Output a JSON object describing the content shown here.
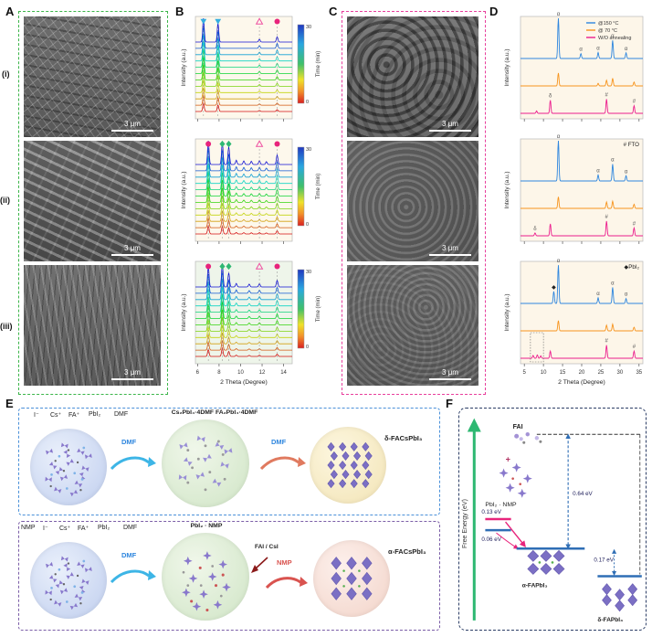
{
  "figure": {
    "panel_a": {
      "label": "A",
      "row_labels": [
        "(i)",
        "(ii)",
        "(iii)"
      ],
      "scalebar": "3 μm"
    },
    "panel_b": {
      "label": "B"
    },
    "panel_c": {
      "label": "C",
      "scalebar": "3 μm"
    },
    "panel_d": {
      "label": "D"
    },
    "panel_e": {
      "label": "E",
      "top": {
        "ions": [
          "I⁻",
          "Cs⁺",
          "FA⁺",
          "PbI₂",
          "DMF"
        ],
        "arrow1": "DMF",
        "intermediate": "Cs₂PbI₄·4DMF   FA₂PbI₄·4DMF",
        "arrow2": "DMF",
        "product": "δ-FACsPbI₃"
      },
      "bottom": {
        "ions": [
          "NMP",
          "I⁻",
          "Cs⁺",
          "FA⁺",
          "PbI₂",
          "DMF"
        ],
        "arrow1": "DMF",
        "intermediate": "PbI₂ · NMP",
        "side": "FAI / CsI",
        "arrow2": "NMP",
        "product": "α-FACsPbI₃"
      }
    },
    "panel_f": {
      "label": "F",
      "ylabel": "Free Energy (eV)",
      "fai": "FAI",
      "plus": "+",
      "pbi2nmp": "PbI₂ · NMP",
      "e013": "0.13 eV",
      "e006": "0.06 eV",
      "e064": "0.64 eV",
      "e017": "0.17 eV",
      "alpha": "α-FAPbI₃",
      "delta": "δ-FAPbI₃"
    }
  },
  "chart_data": [
    {
      "id": "B-i",
      "type": "line",
      "subtype": "waterfall",
      "ylabel": "Intensity (a.u.)",
      "xlabel": "2 Theta (Degree)",
      "xlim": [
        5.8,
        14.8
      ],
      "xticks": [
        6,
        8,
        10,
        12,
        14
      ],
      "colorbar": {
        "label": "Time (min)",
        "range": [
          0,
          30
        ]
      },
      "n_traces": 12,
      "bg": "#fdf8ec",
      "peaks": [
        {
          "x": 6.55,
          "h": 1.0,
          "marker": "triangle-down",
          "color": "#35aee0"
        },
        {
          "x": 7.9,
          "h": 0.8,
          "marker": "triangle-down",
          "color": "#35aee0"
        },
        {
          "x": 11.75,
          "h": 0.12,
          "marker": "triangle-open",
          "color": "#ee4fa0"
        },
        {
          "x": 13.4,
          "h": 0.22,
          "marker": "circle",
          "color": "#e8247c"
        }
      ]
    },
    {
      "id": "B-ii",
      "type": "line",
      "subtype": "waterfall",
      "ylabel": "Intensity (a.u.)",
      "xlabel": "2 Theta (Degree)",
      "xlim": [
        5.8,
        14.8
      ],
      "xticks": [
        6,
        8,
        10,
        12,
        14
      ],
      "colorbar": {
        "label": "Time (min)",
        "range": [
          0,
          30
        ]
      },
      "n_traces": 12,
      "bg": "#fdf8ec",
      "peaks": [
        {
          "x": 7.0,
          "h": 1.0,
          "marker": "circle",
          "color": "#e8247c"
        },
        {
          "x": 8.3,
          "h": 0.95,
          "marker": "diamond",
          "color": "#2eb872"
        },
        {
          "x": 8.9,
          "h": 0.75,
          "marker": "diamond",
          "color": "#2eb872"
        },
        {
          "x": 9.6,
          "h": 0.18
        },
        {
          "x": 10.3,
          "h": 0.15
        },
        {
          "x": 11.0,
          "h": 0.14
        },
        {
          "x": 11.75,
          "h": 0.16,
          "marker": "triangle-open",
          "color": "#ee4fa0"
        },
        {
          "x": 12.4,
          "h": 0.12
        },
        {
          "x": 13.4,
          "h": 0.4,
          "marker": "circle",
          "color": "#e8247c"
        }
      ]
    },
    {
      "id": "B-iii",
      "type": "line",
      "subtype": "waterfall",
      "ylabel": "Intensity (a.u.)",
      "xlabel": "2 Theta (Degree)",
      "xlim": [
        5.8,
        14.8
      ],
      "xticks": [
        6,
        8,
        10,
        12,
        14
      ],
      "colorbar": {
        "label": "Time (min)",
        "range": [
          0,
          30
        ]
      },
      "n_traces": 12,
      "bg": "#eef5ea",
      "peaks": [
        {
          "x": 7.0,
          "h": 0.85,
          "marker": "circle",
          "color": "#e8247c"
        },
        {
          "x": 8.3,
          "h": 1.0,
          "marker": "diamond",
          "color": "#2eb872"
        },
        {
          "x": 8.9,
          "h": 0.6,
          "marker": "diamond",
          "color": "#2eb872"
        },
        {
          "x": 9.6,
          "h": 0.15
        },
        {
          "x": 10.8,
          "h": 0.12
        },
        {
          "x": 11.75,
          "h": 0.14,
          "marker": "triangle-open",
          "color": "#ee4fa0"
        },
        {
          "x": 13.4,
          "h": 0.28,
          "marker": "circle",
          "color": "#e8247c"
        }
      ]
    },
    {
      "id": "D-top",
      "type": "line",
      "ylabel": "Intensity (a.u.)",
      "xlabel": "2 Theta (Degree)",
      "xlim": [
        4,
        36
      ],
      "xticks": [
        5,
        10,
        15,
        20,
        25,
        30,
        35
      ],
      "bg": "#fdf6e9",
      "legend": true,
      "series": [
        {
          "name": "@150 °C",
          "color": "#2e86de",
          "peaks": [
            {
              "x": 13.9,
              "h": 1.0,
              "label": "α"
            },
            {
              "x": 19.8,
              "h": 0.12,
              "label": "α"
            },
            {
              "x": 24.3,
              "h": 0.15,
              "label": "α"
            },
            {
              "x": 28.1,
              "h": 0.45,
              "label": "α"
            },
            {
              "x": 31.6,
              "h": 0.14,
              "label": "α"
            }
          ]
        },
        {
          "name": "@ 70 °C",
          "color": "#f7941d",
          "peaks": [
            {
              "x": 13.9,
              "h": 0.5
            },
            {
              "x": 24.3,
              "h": 0.1
            },
            {
              "x": 26.5,
              "h": 0.22
            },
            {
              "x": 28.1,
              "h": 0.3
            },
            {
              "x": 33.7,
              "h": 0.15
            }
          ]
        },
        {
          "name": "W/O annealing",
          "color": "#ec1d8d",
          "peaks": [
            {
              "x": 8.2,
              "h": 0.1
            },
            {
              "x": 11.8,
              "h": 0.55,
              "label": "δ"
            },
            {
              "x": 26.5,
              "h": 0.6,
              "label": "#"
            },
            {
              "x": 33.7,
              "h": 0.32,
              "label": "#"
            }
          ]
        }
      ]
    },
    {
      "id": "D-mid",
      "type": "line",
      "ylabel": "Intensity (a.u.)",
      "xlabel": "2 Theta (Degree)",
      "xlim": [
        4,
        36
      ],
      "xticks": [
        5,
        10,
        15,
        20,
        25,
        30,
        35
      ],
      "bg": "#fdf6e9",
      "annotation": "# FTO",
      "series": [
        {
          "name": "@150 °C",
          "color": "#2e86de",
          "peaks": [
            {
              "x": 13.9,
              "h": 1.0,
              "label": "α"
            },
            {
              "x": 24.3,
              "h": 0.15,
              "label": "α"
            },
            {
              "x": 28.1,
              "h": 0.42,
              "label": "α"
            },
            {
              "x": 31.6,
              "h": 0.13,
              "label": "α"
            }
          ]
        },
        {
          "name": "@ 70 °C",
          "color": "#f7941d",
          "peaks": [
            {
              "x": 13.9,
              "h": 0.45
            },
            {
              "x": 26.5,
              "h": 0.25
            },
            {
              "x": 28.1,
              "h": 0.28
            },
            {
              "x": 33.7,
              "h": 0.16
            }
          ]
        },
        {
          "name": "W/O annealing",
          "color": "#ec1d8d",
          "peaks": [
            {
              "x": 7.8,
              "h": 0.12,
              "label": "δ"
            },
            {
              "x": 11.8,
              "h": 0.5
            },
            {
              "x": 26.5,
              "h": 0.62,
              "label": "#"
            },
            {
              "x": 33.7,
              "h": 0.33,
              "label": "#"
            }
          ]
        }
      ]
    },
    {
      "id": "D-bottom",
      "type": "line",
      "ylabel": "Intensity (a.u.)",
      "xlabel": "2 Theta (Degree)",
      "xlim": [
        4,
        36
      ],
      "xticks": [
        5,
        10,
        15,
        20,
        25,
        30,
        35
      ],
      "bg": "#fdf6e9",
      "annotation": "◆PbI₂",
      "dotted_box": [
        6.6,
        10.0
      ],
      "series": [
        {
          "name": "@150 °C",
          "color": "#2e86de",
          "peaks": [
            {
              "x": 12.7,
              "h": 0.3,
              "label": "◆"
            },
            {
              "x": 13.9,
              "h": 0.95,
              "label": "α"
            },
            {
              "x": 24.3,
              "h": 0.14,
              "label": "α"
            },
            {
              "x": 28.1,
              "h": 0.4,
              "label": "α"
            },
            {
              "x": 31.6,
              "h": 0.12,
              "label": "α"
            }
          ]
        },
        {
          "name": "@ 70 °C",
          "color": "#f7941d",
          "peaks": [
            {
              "x": 13.9,
              "h": 0.4
            },
            {
              "x": 26.5,
              "h": 0.22
            },
            {
              "x": 28.1,
              "h": 0.26
            },
            {
              "x": 33.7,
              "h": 0.14
            }
          ]
        },
        {
          "name": "W/O annealing",
          "color": "#ec1d8d",
          "peaks": [
            {
              "x": 7.3,
              "h": 0.12
            },
            {
              "x": 8.4,
              "h": 0.14
            },
            {
              "x": 9.3,
              "h": 0.1
            },
            {
              "x": 11.8,
              "h": 0.3
            },
            {
              "x": 26.5,
              "h": 0.55,
              "label": "#"
            },
            {
              "x": 33.7,
              "h": 0.3,
              "label": "#"
            }
          ]
        }
      ]
    }
  ]
}
